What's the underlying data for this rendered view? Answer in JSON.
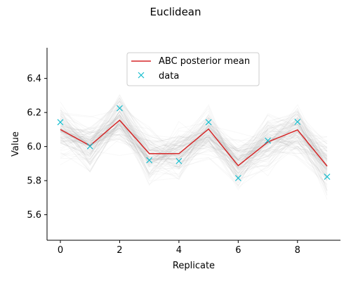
{
  "chart_data": {
    "type": "line",
    "title": "Euclidean",
    "xlabel": "Replicate",
    "ylabel": "Value",
    "xlim": [
      -0.45,
      9.45
    ],
    "ylim": [
      5.45,
      6.58
    ],
    "xticks": [
      0,
      2,
      4,
      6,
      8
    ],
    "xtick_labels": [
      "0",
      "2",
      "4",
      "6",
      "8"
    ],
    "yticks": [
      5.6,
      5.8,
      6.0,
      6.2,
      6.4
    ],
    "ytick_labels": [
      "5.6",
      "5.8",
      "6.0",
      "6.2",
      "6.4"
    ],
    "x": [
      0,
      1,
      2,
      3,
      4,
      5,
      6,
      7,
      8,
      9
    ],
    "posterior_band": {
      "color": "#808080",
      "count": 120,
      "spread": 0.14
    },
    "series": [
      {
        "name": "ABC posterior mean",
        "kind": "line",
        "color": "#d62728",
        "values": [
          6.1,
          6.005,
          6.155,
          5.958,
          5.958,
          6.103,
          5.888,
          6.027,
          6.098,
          5.885
        ]
      },
      {
        "name": "data",
        "kind": "marker-x",
        "color": "#17becf",
        "values": [
          6.143,
          6.002,
          6.225,
          5.92,
          5.915,
          6.143,
          5.815,
          6.035,
          6.145,
          5.823
        ]
      }
    ],
    "legend": {
      "position": "upper-center",
      "entries": [
        "ABC posterior mean",
        "data"
      ]
    },
    "grid": false
  }
}
